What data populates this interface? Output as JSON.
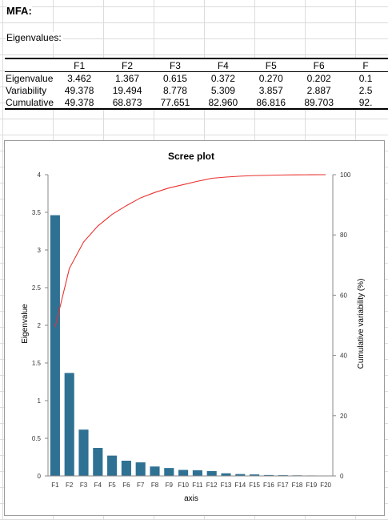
{
  "sheet": {
    "heading": "MFA:",
    "subheading": "Eigenvalues:"
  },
  "table": {
    "columns": [
      "",
      "F1",
      "F2",
      "F3",
      "F4",
      "F5",
      "F6",
      "F"
    ],
    "rows": [
      {
        "label": "Eigenvalue",
        "values": [
          "3.462",
          "1.367",
          "0.615",
          "0.372",
          "0.270",
          "0.202",
          "0.1"
        ]
      },
      {
        "label": "Variability",
        "values": [
          "49.378",
          "19.494",
          "8.778",
          "5.309",
          "3.857",
          "2.887",
          "2.5"
        ]
      },
      {
        "label": "Cumulative",
        "values": [
          "49.378",
          "68.873",
          "77.651",
          "82.960",
          "86.816",
          "89.703",
          "92."
        ]
      }
    ]
  },
  "chart_data": {
    "type": "bar",
    "title": "Scree plot",
    "xlabel": "axis",
    "ylabel": "Eigenvalue",
    "y2label": "Cumulative variability (%)",
    "categories": [
      "F1",
      "F2",
      "F3",
      "F4",
      "F5",
      "F6",
      "F7",
      "F8",
      "F9",
      "F10",
      "F11",
      "F12",
      "F13",
      "F14",
      "F15",
      "F16",
      "F17",
      "F18",
      "F19",
      "F20"
    ],
    "ylim": [
      0,
      4
    ],
    "yticks": [
      "0",
      "0.5",
      "1",
      "1.5",
      "2",
      "2.5",
      "3",
      "3.5",
      "4"
    ],
    "y2lim": [
      0,
      100
    ],
    "y2ticks": [
      "0",
      "20",
      "40",
      "60",
      "80",
      "100"
    ],
    "bar_color": "#2e7193",
    "line_color": "#e8322f",
    "series": [
      {
        "values": [
          3.462,
          1.367,
          0.615,
          0.372,
          0.27,
          0.202,
          0.18,
          0.125,
          0.105,
          0.08,
          0.075,
          0.065,
          0.035,
          0.025,
          0.02,
          0.012,
          0.01,
          0.008,
          0.006,
          0.004
        ]
      },
      {
        "values": [
          49.378,
          68.873,
          77.651,
          82.96,
          86.816,
          89.703,
          92.3,
          94.1,
          95.6,
          96.7,
          97.8,
          98.8,
          99.2,
          99.5,
          99.7,
          99.8,
          99.9,
          99.95,
          99.98,
          100
        ]
      }
    ]
  }
}
